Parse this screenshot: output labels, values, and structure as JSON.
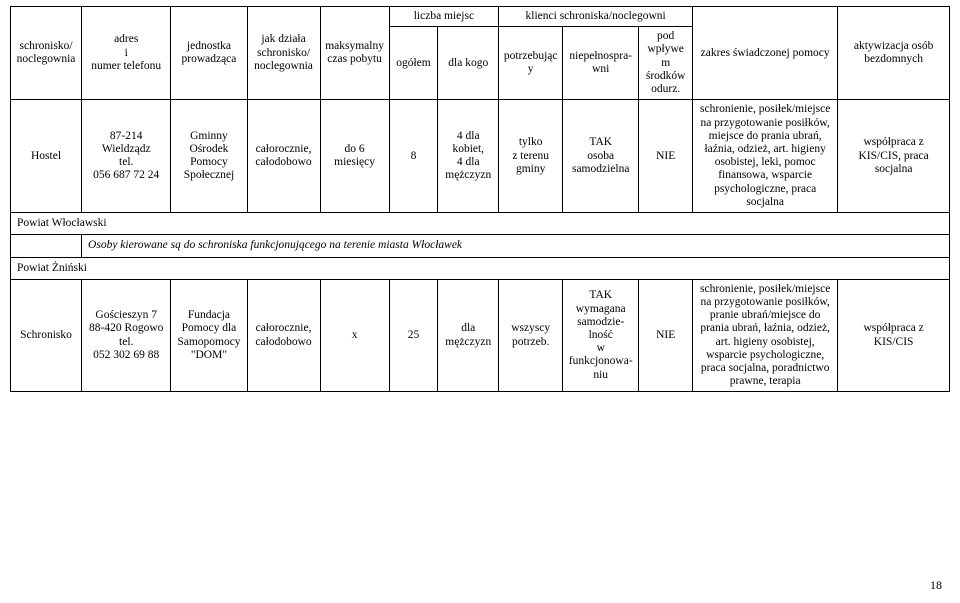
{
  "headers": {
    "r0": {
      "col0": "schronisko/ noclegownia",
      "col1": "adres\ni\nnumer telefonu",
      "col2": "jednostka prowadząca",
      "col3": "jak działa schronisko/ noclegownia",
      "col4": "maksymalny czas pobytu",
      "grp1": "liczba miejsc",
      "grp2": "klienci schroniska/noclegowni",
      "col10": "zakres świadczonej pomocy",
      "col11": "aktywizacja osób bezdomnych"
    },
    "r1": {
      "col5": "ogółem",
      "col6": "dla kogo",
      "col7": "potrzebujący",
      "col8": "niepełnospra-\nwni",
      "col9": "pod wpływem środków odurz."
    }
  },
  "rows": [
    {
      "kind": "data",
      "c0": "Hostel",
      "c1": "87-214 Wieldządz\ntel.\n056 687 72 24",
      "c2": "Gminny Ośrodek Pomocy Społecznej",
      "c3": "całorocznie, całodobowo",
      "c4": "do 6 miesięcy",
      "c5": "8",
      "c6": "4 dla kobiet,\n4 dla mężczyzn",
      "c7": "tylko\nz terenu gminy",
      "c8": "TAK\nosoba samodzielna",
      "c9": "NIE",
      "c10": "schronienie, posiłek/miejsce na przygotowanie posiłków, miejsce do prania ubrań, łaźnia, odzież, art. higieny osobistej, leki, pomoc finansowa, wsparcie psychologiczne, praca socjalna",
      "c11": "współpraca z KIS/CIS, praca socjalna"
    },
    {
      "kind": "section",
      "label": "Powiat Włocławski"
    },
    {
      "kind": "note",
      "label": "Osoby kierowane są do schroniska funkcjonującego na terenie miasta Włocławek"
    },
    {
      "kind": "section",
      "label": "Powiat Żniński"
    },
    {
      "kind": "data",
      "c0": "Schronisko",
      "c1": "Gościeszyn 7\n88-420 Rogowo\ntel.\n052 302 69 88",
      "c2": "Fundacja Pomocy dla Samopomocy \"DOM\"",
      "c3": "całorocznie, całodobowo",
      "c4": "x",
      "c5": "25",
      "c6": "dla mężczyzn",
      "c7": "wszyscy potrzeb.",
      "c8": "TAK\nwymagana samodzie-\nlność\nw funkcjonowa-\nniu",
      "c9": "NIE",
      "c10": "schronienie, posiłek/miejsce na przygotowanie posiłków, pranie ubrań/miejsce do prania ubrań, łaźnia, odzież, art. higieny osobistej, wsparcie psychologiczne, praca socjalna, poradnictwo prawne, terapia",
      "c11": "współpraca z KIS/CIS"
    }
  ],
  "pageNumber": "18"
}
